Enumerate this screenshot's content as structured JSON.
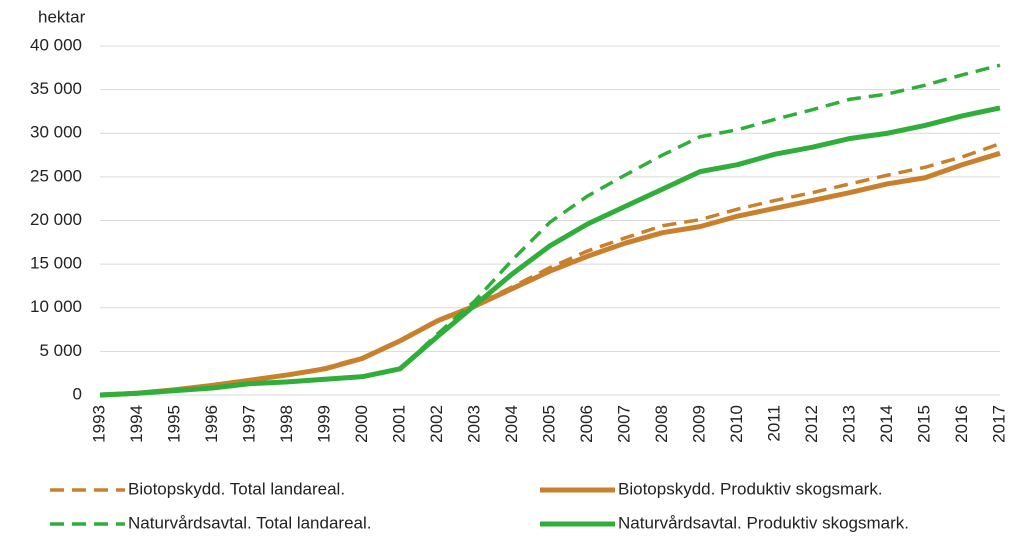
{
  "chart_data": {
    "type": "line",
    "y_label": "hektar",
    "categories": [
      "1993",
      "1994",
      "1995",
      "1996",
      "1997",
      "1998",
      "1999",
      "2000",
      "2001",
      "2002",
      "2003",
      "2004",
      "2005",
      "2006",
      "2007",
      "2008",
      "2009",
      "2010",
      "2011",
      "2012",
      "2013",
      "2014",
      "2015",
      "2016",
      "2017"
    ],
    "ylim": [
      0,
      40000
    ],
    "yticks": [
      0,
      {
        "value": 5000,
        "label": "5 000"
      },
      {
        "value": 10000,
        "label": "10 000"
      },
      {
        "value": 15000,
        "label": "15 000"
      },
      {
        "value": 20000,
        "label": "20 000"
      },
      {
        "value": 25000,
        "label": "25 000"
      },
      {
        "value": 30000,
        "label": "30 000"
      },
      {
        "value": 35000,
        "label": "35 000"
      },
      {
        "value": 40000,
        "label": "40 000"
      }
    ],
    "grid": true,
    "series": [
      {
        "name": "Biotopskydd. Total landareal.",
        "color": "#c9802d",
        "line_style": "dashed",
        "values": [
          0,
          200,
          600,
          1100,
          1700,
          2300,
          3100,
          4300,
          6300,
          8600,
          10300,
          12400,
          14600,
          16500,
          18000,
          19400,
          20100,
          21300,
          22300,
          23200,
          24200,
          25200,
          26100,
          27300,
          28800
        ]
      },
      {
        "name": "Biotopskydd. Produktiv skogsmark.",
        "color": "#c9802d",
        "line_style": "solid",
        "values": [
          0,
          200,
          600,
          1100,
          1700,
          2300,
          3000,
          4200,
          6200,
          8500,
          10200,
          12200,
          14200,
          15900,
          17400,
          18600,
          19300,
          20500,
          21400,
          22300,
          23200,
          24200,
          24900,
          26400,
          27700
        ]
      },
      {
        "name": "Naturvårdsavtal. Total landareal.",
        "color": "#2fae3a",
        "line_style": "dashed",
        "values": [
          0,
          200,
          500,
          800,
          1300,
          1500,
          1800,
          2100,
          3000,
          7000,
          10800,
          15500,
          19800,
          22800,
          25200,
          27500,
          29600,
          30400,
          31600,
          32700,
          33900,
          34500,
          35500,
          36700,
          37800
        ]
      },
      {
        "name": "Naturvårdsavtal. Produktiv skogsmark.",
        "color": "#2fae3a",
        "line_style": "solid",
        "values": [
          0,
          200,
          500,
          800,
          1300,
          1500,
          1800,
          2100,
          3000,
          6700,
          10300,
          13900,
          17100,
          19600,
          21600,
          23600,
          25600,
          26400,
          27600,
          28400,
          29400,
          30000,
          30900,
          32000,
          32900
        ]
      }
    ]
  }
}
